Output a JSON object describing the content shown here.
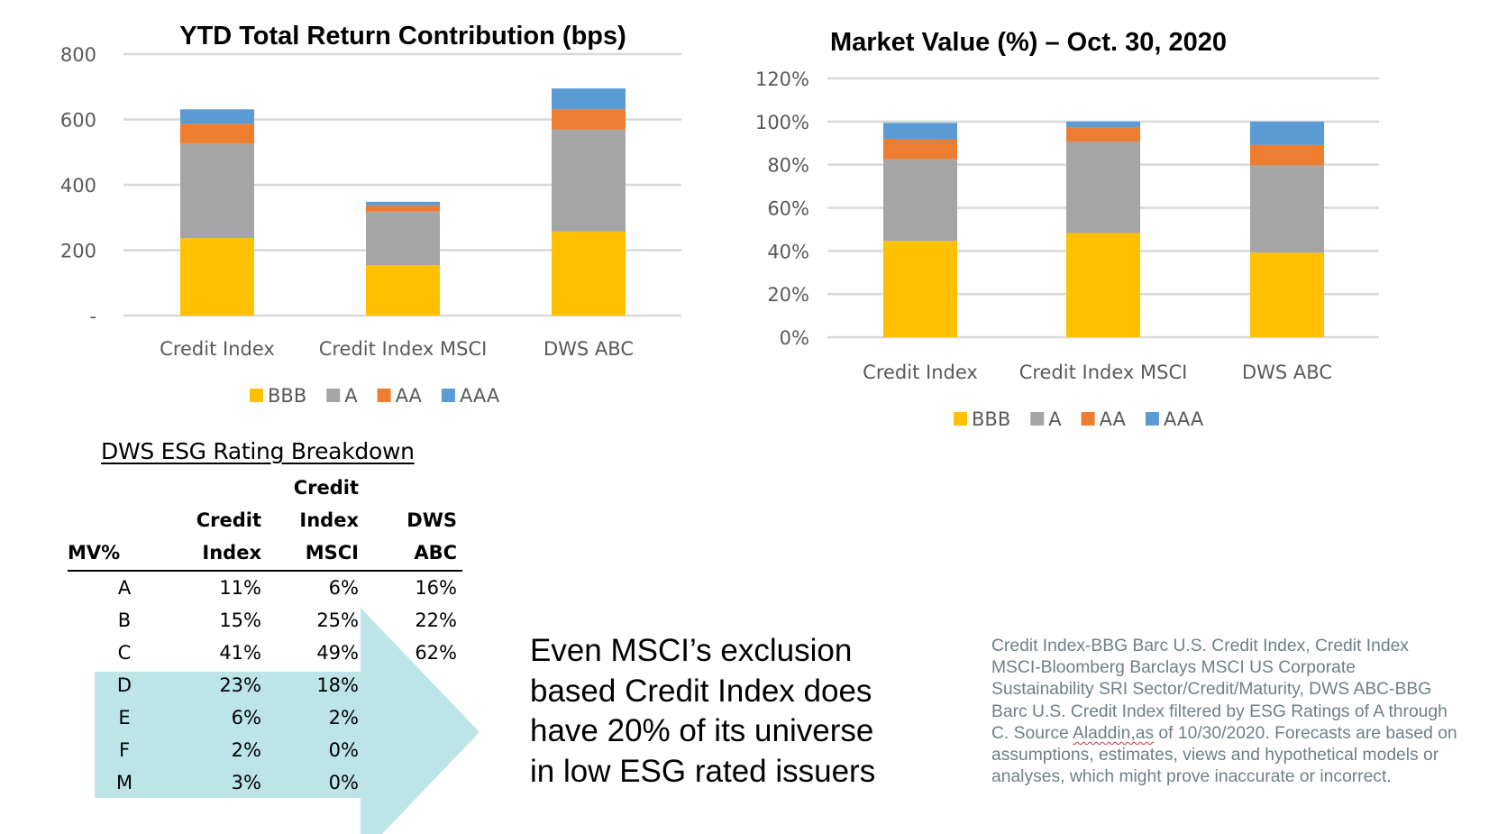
{
  "chart_data": [
    {
      "type": "bar",
      "stacked": true,
      "title": "YTD Total Return Contribution (bps)",
      "xlabel": "",
      "ylabel": "",
      "categories": [
        "Credit Index",
        "Credit Index MSCI",
        "DWS ABC"
      ],
      "series": [
        {
          "name": "BBB",
          "color": "#FFC000",
          "values": [
            237,
            154,
            257
          ]
        },
        {
          "name": "A",
          "color": "#A5A5A5",
          "values": [
            289,
            164,
            312
          ]
        },
        {
          "name": "AA",
          "color": "#ED7D31",
          "values": [
            61,
            19,
            62
          ]
        },
        {
          "name": "AAA",
          "color": "#5B9BD5",
          "values": [
            44,
            11,
            64
          ]
        }
      ],
      "ylim": [
        0,
        800
      ],
      "yticks": [
        0,
        200,
        400,
        600,
        800
      ],
      "ytick_labels": [
        "-",
        "200",
        "400",
        "600",
        "800"
      ],
      "grid": true,
      "legend": "bottom"
    },
    {
      "type": "bar",
      "stacked": true,
      "title": "Market Value (%) – Oct. 30, 2020",
      "xlabel": "",
      "ylabel": "",
      "categories": [
        "Credit Index",
        "Credit Index MSCI",
        "DWS ABC"
      ],
      "series": [
        {
          "name": "BBB",
          "color": "#FFC000",
          "values": [
            44.6,
            48.3,
            39.2
          ]
        },
        {
          "name": "A",
          "color": "#A5A5A5",
          "values": [
            37.9,
            42.4,
            40.5
          ]
        },
        {
          "name": "AA",
          "color": "#ED7D31",
          "values": [
            9.5,
            6.7,
            9.5
          ]
        },
        {
          "name": "AAA",
          "color": "#5B9BD5",
          "values": [
            7.4,
            2.6,
            10.8
          ]
        }
      ],
      "ylim": [
        0,
        120
      ],
      "yticks": [
        0,
        20,
        40,
        60,
        80,
        100,
        120
      ],
      "ytick_labels": [
        "0%",
        "20%",
        "40%",
        "60%",
        "80%",
        "100%",
        "120%"
      ],
      "grid": true,
      "legend": "bottom"
    }
  ],
  "esg_table": {
    "title": "DWS ESG Rating Breakdown",
    "headers": {
      "col0": "MV%",
      "col1_line1": "Credit",
      "col1_line2": "Index",
      "col2_line1": "Credit",
      "col2_line2": "Index",
      "col2_line3": "MSCI",
      "col3_line1": "DWS",
      "col3_line2": "ABC"
    },
    "rows": [
      {
        "rating": "A",
        "credit_index": "11%",
        "credit_index_msci": "6%",
        "dws_abc": "16%"
      },
      {
        "rating": "B",
        "credit_index": "15%",
        "credit_index_msci": "25%",
        "dws_abc": "22%"
      },
      {
        "rating": "C",
        "credit_index": "41%",
        "credit_index_msci": "49%",
        "dws_abc": "62%"
      },
      {
        "rating": "D",
        "credit_index": "23%",
        "credit_index_msci": "18%",
        "dws_abc": ""
      },
      {
        "rating": "E",
        "credit_index": "6%",
        "credit_index_msci": "2%",
        "dws_abc": ""
      },
      {
        "rating": "F",
        "credit_index": "2%",
        "credit_index_msci": "0%",
        "dws_abc": ""
      },
      {
        "rating": "M",
        "credit_index": "3%",
        "credit_index_msci": "0%",
        "dws_abc": ""
      }
    ],
    "highlight_color": "#BDE5E8"
  },
  "callout": {
    "lines": [
      "Even MSCI’s exclusion",
      "based Credit Index does",
      "have 20% of its universe",
      "in low ESG rated issuers"
    ]
  },
  "footnote": {
    "part1": "Credit Index-BBG Barc U.S. Credit Index, Credit Index MSCI-Bloomberg Barclays MSCI US Corporate Sustainability SRI Sector/Credit/Maturity, DWS ABC-BBG Barc U.S. Credit Index filtered by ESG Ratings of A through C.  Source ",
    "flagged_word": "Aladdin,as",
    "part2": " of 10/30/2020. Forecasts are based on assumptions, estimates, views and hypothetical models or analyses, which might prove inaccurate or incorrect."
  }
}
